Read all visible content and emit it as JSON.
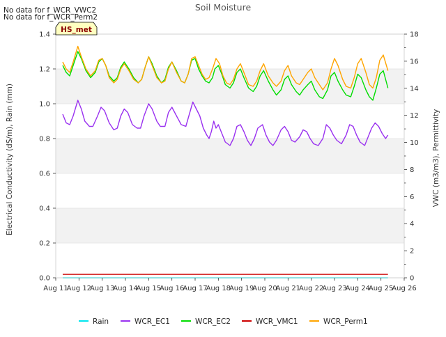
{
  "chart_data": {
    "type": "line",
    "title": "Soil Moisture",
    "notes": [
      "No data for f_WCR_VWC2",
      "No data for f_WCR_Perm2"
    ],
    "badge": "HS_met",
    "xlabel": "",
    "ylabel_left": "Electrical Conductivity (dS/m), Rain (mm)",
    "ylabel_right": "VWC (m3/m3), Permittivity",
    "x_categories": [
      "Aug 11",
      "Aug 12",
      "Aug 13",
      "Aug 14",
      "Aug 15",
      "Aug 16",
      "Aug 17",
      "Aug 18",
      "Aug 19",
      "Aug 20",
      "Aug 21",
      "Aug 22",
      "Aug 23",
      "Aug 24",
      "Aug 25",
      "Aug 26"
    ],
    "x_range": [
      11,
      26
    ],
    "ylim_left": [
      0.0,
      1.4
    ],
    "yticks_left": [
      "0.0",
      "0.2",
      "0.4",
      "0.6",
      "0.8",
      "1.0",
      "1.2",
      "1.4"
    ],
    "ylim_right": [
      0,
      18
    ],
    "yticks_right": [
      "0",
      "2",
      "4",
      "6",
      "8",
      "10",
      "12",
      "14",
      "16",
      "18"
    ],
    "shaded_bands_left": [
      [
        0.2,
        0.4
      ],
      [
        0.6,
        0.8
      ],
      [
        1.0,
        1.2
      ]
    ],
    "colors": {
      "Rain": "#00e5ee",
      "WCR_EC1": "#9a32f0",
      "WCR_EC2": "#00dd00",
      "WCR_VMC1": "#cc0000",
      "WCR_Perm1": "#ffa500"
    },
    "legend": [
      "Rain",
      "WCR_EC1",
      "WCR_EC2",
      "WCR_VMC1",
      "WCR_Perm1"
    ],
    "series": [
      {
        "name": "Rain",
        "axis": "left",
        "x": [
          11.3,
          25.3
        ],
        "values": [
          0.0,
          0.0
        ]
      },
      {
        "name": "WCR_EC1",
        "axis": "left",
        "x": [
          11.3,
          11.45,
          11.6,
          11.75,
          11.95,
          12.1,
          12.25,
          12.45,
          12.6,
          12.8,
          12.95,
          13.1,
          13.3,
          13.5,
          13.65,
          13.8,
          13.95,
          14.1,
          14.3,
          14.5,
          14.65,
          14.8,
          15.0,
          15.15,
          15.35,
          15.5,
          15.7,
          15.85,
          16.0,
          16.2,
          16.4,
          16.6,
          16.75,
          16.9,
          17.05,
          17.2,
          17.35,
          17.5,
          17.6,
          17.7,
          17.8,
          17.9,
          18.0,
          18.15,
          18.3,
          18.5,
          18.65,
          18.8,
          18.95,
          19.1,
          19.25,
          19.4,
          19.55,
          19.7,
          19.9,
          20.05,
          20.2,
          20.35,
          20.5,
          20.7,
          20.85,
          21.0,
          21.15,
          21.3,
          21.5,
          21.65,
          21.8,
          21.95,
          22.1,
          22.3,
          22.5,
          22.65,
          22.8,
          22.95,
          23.1,
          23.3,
          23.5,
          23.65,
          23.8,
          23.95,
          24.1,
          24.3,
          24.45,
          24.6,
          24.75,
          24.9,
          25.05,
          25.2,
          25.3
        ],
        "values": [
          0.94,
          0.89,
          0.88,
          0.93,
          1.02,
          0.97,
          0.9,
          0.87,
          0.87,
          0.93,
          0.98,
          0.96,
          0.89,
          0.85,
          0.86,
          0.93,
          0.97,
          0.95,
          0.88,
          0.86,
          0.86,
          0.93,
          1.0,
          0.97,
          0.9,
          0.87,
          0.87,
          0.95,
          0.98,
          0.93,
          0.88,
          0.87,
          0.94,
          1.01,
          0.97,
          0.93,
          0.86,
          0.82,
          0.8,
          0.84,
          0.9,
          0.86,
          0.88,
          0.83,
          0.78,
          0.76,
          0.8,
          0.87,
          0.88,
          0.84,
          0.79,
          0.76,
          0.8,
          0.86,
          0.88,
          0.82,
          0.78,
          0.76,
          0.79,
          0.85,
          0.87,
          0.84,
          0.79,
          0.78,
          0.81,
          0.85,
          0.84,
          0.8,
          0.77,
          0.76,
          0.8,
          0.88,
          0.86,
          0.82,
          0.79,
          0.77,
          0.82,
          0.88,
          0.87,
          0.82,
          0.78,
          0.76,
          0.81,
          0.86,
          0.89,
          0.87,
          0.83,
          0.8,
          0.82
        ]
      },
      {
        "name": "WCR_EC2",
        "axis": "left",
        "x": [
          11.3,
          11.45,
          11.6,
          11.75,
          11.95,
          12.1,
          12.3,
          12.5,
          12.7,
          12.85,
          13.0,
          13.15,
          13.3,
          13.5,
          13.65,
          13.8,
          13.95,
          14.15,
          14.35,
          14.55,
          14.7,
          14.85,
          15.0,
          15.15,
          15.35,
          15.55,
          15.7,
          15.85,
          16.0,
          16.2,
          16.4,
          16.55,
          16.7,
          16.85,
          17.0,
          17.15,
          17.3,
          17.45,
          17.6,
          17.75,
          17.85,
          18.0,
          18.15,
          18.3,
          18.5,
          18.65,
          18.8,
          18.95,
          19.1,
          19.3,
          19.5,
          19.65,
          19.8,
          19.95,
          20.15,
          20.35,
          20.5,
          20.7,
          20.85,
          21.0,
          21.15,
          21.35,
          21.5,
          21.65,
          21.85,
          22.0,
          22.15,
          22.35,
          22.5,
          22.7,
          22.85,
          23.0,
          23.15,
          23.35,
          23.5,
          23.7,
          23.85,
          24.0,
          24.15,
          24.35,
          24.5,
          24.65,
          24.8,
          24.95,
          25.1,
          25.3
        ],
        "values": [
          1.22,
          1.18,
          1.16,
          1.22,
          1.3,
          1.26,
          1.19,
          1.15,
          1.18,
          1.24,
          1.26,
          1.22,
          1.16,
          1.13,
          1.15,
          1.21,
          1.24,
          1.2,
          1.15,
          1.12,
          1.14,
          1.21,
          1.27,
          1.23,
          1.16,
          1.12,
          1.14,
          1.21,
          1.24,
          1.19,
          1.13,
          1.12,
          1.17,
          1.25,
          1.26,
          1.2,
          1.16,
          1.13,
          1.12,
          1.15,
          1.2,
          1.22,
          1.17,
          1.11,
          1.09,
          1.12,
          1.18,
          1.2,
          1.15,
          1.09,
          1.07,
          1.1,
          1.16,
          1.19,
          1.13,
          1.08,
          1.05,
          1.08,
          1.14,
          1.16,
          1.11,
          1.07,
          1.05,
          1.08,
          1.11,
          1.13,
          1.08,
          1.04,
          1.03,
          1.08,
          1.16,
          1.18,
          1.13,
          1.08,
          1.05,
          1.04,
          1.1,
          1.17,
          1.15,
          1.08,
          1.04,
          1.02,
          1.09,
          1.17,
          1.19,
          1.09
        ]
      },
      {
        "name": "WCR_VMC1",
        "axis": "left",
        "x": [
          11.3,
          12.0,
          13.0,
          14.0,
          15.0,
          16.0,
          17.0,
          18.0,
          19.0,
          20.0,
          21.0,
          22.0,
          23.0,
          24.0,
          25.0,
          25.3
        ],
        "values": [
          0.02,
          0.02,
          0.02,
          0.02,
          0.02,
          0.02,
          0.02,
          0.02,
          0.02,
          0.02,
          0.02,
          0.02,
          0.02,
          0.02,
          0.02,
          0.02
        ]
      },
      {
        "name": "WCR_Perm1",
        "axis": "left",
        "x": [
          11.3,
          11.45,
          11.6,
          11.75,
          11.95,
          12.1,
          12.3,
          12.5,
          12.7,
          12.85,
          13.0,
          13.15,
          13.3,
          13.5,
          13.65,
          13.8,
          13.95,
          14.15,
          14.35,
          14.55,
          14.7,
          14.85,
          15.0,
          15.15,
          15.35,
          15.55,
          15.7,
          15.85,
          16.0,
          16.2,
          16.4,
          16.55,
          16.7,
          16.85,
          17.0,
          17.15,
          17.3,
          17.45,
          17.6,
          17.75,
          17.9,
          18.05,
          18.2,
          18.35,
          18.5,
          18.65,
          18.8,
          18.95,
          19.1,
          19.3,
          19.5,
          19.65,
          19.8,
          19.95,
          20.15,
          20.35,
          20.5,
          20.7,
          20.85,
          21.0,
          21.15,
          21.35,
          21.5,
          21.65,
          21.85,
          22.0,
          22.15,
          22.35,
          22.5,
          22.7,
          22.85,
          23.0,
          23.15,
          23.35,
          23.5,
          23.7,
          23.85,
          24.0,
          24.15,
          24.35,
          24.5,
          24.65,
          24.8,
          24.95,
          25.1,
          25.3
        ],
        "values": [
          1.24,
          1.2,
          1.18,
          1.24,
          1.33,
          1.27,
          1.2,
          1.16,
          1.19,
          1.25,
          1.26,
          1.22,
          1.15,
          1.12,
          1.14,
          1.2,
          1.23,
          1.19,
          1.14,
          1.12,
          1.14,
          1.21,
          1.27,
          1.22,
          1.15,
          1.12,
          1.13,
          1.2,
          1.24,
          1.18,
          1.13,
          1.12,
          1.17,
          1.26,
          1.27,
          1.22,
          1.17,
          1.14,
          1.15,
          1.2,
          1.26,
          1.23,
          1.16,
          1.12,
          1.11,
          1.14,
          1.2,
          1.23,
          1.18,
          1.11,
          1.1,
          1.13,
          1.19,
          1.23,
          1.16,
          1.12,
          1.1,
          1.13,
          1.19,
          1.22,
          1.16,
          1.12,
          1.11,
          1.14,
          1.18,
          1.2,
          1.15,
          1.11,
          1.08,
          1.12,
          1.2,
          1.26,
          1.22,
          1.14,
          1.1,
          1.09,
          1.15,
          1.23,
          1.26,
          1.18,
          1.11,
          1.09,
          1.15,
          1.25,
          1.28,
          1.19
        ]
      }
    ]
  }
}
